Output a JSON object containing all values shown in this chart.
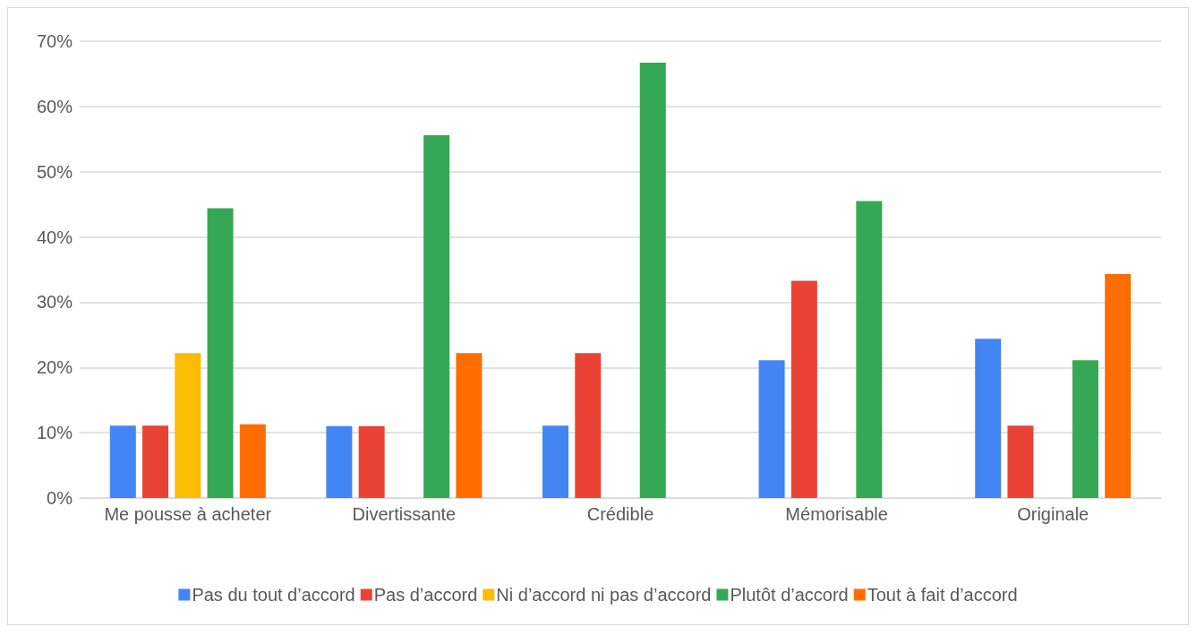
{
  "chart_data": {
    "type": "bar",
    "categories": [
      "Me pousse à acheter",
      "Divertissante",
      "Crédible",
      "Mémorisable",
      "Originale"
    ],
    "series": [
      {
        "name": "Pas du tout d’accord",
        "color": "#4285f4",
        "values": [
          11.1,
          11,
          11.1,
          21.1,
          24.4
        ]
      },
      {
        "name": "Pas d’accord",
        "color": "#ea4335",
        "values": [
          11.1,
          11,
          22.2,
          33.3,
          11.1
        ]
      },
      {
        "name": "Ni d’accord ni pas d’accord",
        "color": "#fbbc04",
        "values": [
          22.2,
          null,
          null,
          null,
          null
        ]
      },
      {
        "name": "Plutôt d’accord",
        "color": "#34a853",
        "values": [
          44.4,
          55.6,
          66.7,
          45.5,
          21.1
        ]
      },
      {
        "name": "Tout à fait d’accord",
        "color": "#ff6d01",
        "values": [
          11.3,
          22.2,
          null,
          null,
          34.3
        ]
      }
    ],
    "ylim": [
      0,
      70
    ],
    "yticks": [
      {
        "value": 0,
        "label": "0%"
      },
      {
        "value": 10,
        "label": "10%"
      },
      {
        "value": 20,
        "label": "20%"
      },
      {
        "value": 30,
        "label": "30%"
      },
      {
        "value": 40,
        "label": "40%"
      },
      {
        "value": 50,
        "label": "50%"
      },
      {
        "value": 60,
        "label": "60%"
      },
      {
        "value": 70,
        "label": "70%"
      }
    ],
    "grid": "y",
    "legend": "bottom"
  }
}
